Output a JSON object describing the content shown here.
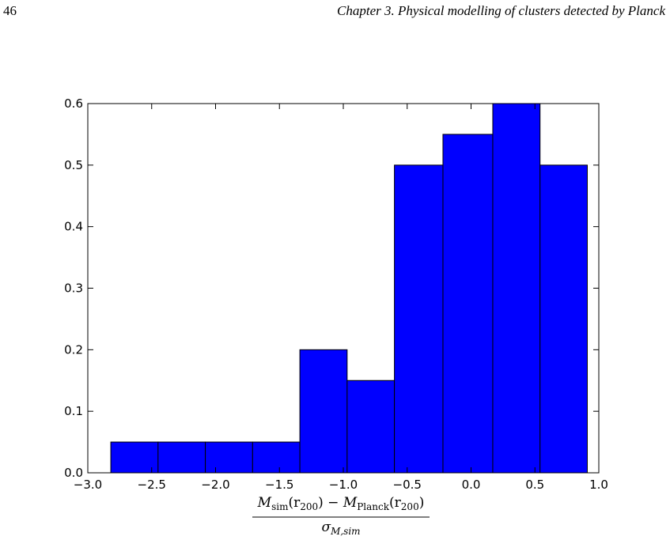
{
  "page": {
    "page_number": "46",
    "running_head": "Chapter 3.  Physical modelling of clusters detected by Planck"
  },
  "chart_data": {
    "type": "bar",
    "title": "",
    "xlabel": {
      "numerator_a": "M",
      "numerator_a_sub": "sim",
      "numerator_a_arg": "(r",
      "numerator_a_arg_sub": "200",
      "numerator_op": ") − ",
      "numerator_b": "M",
      "numerator_b_sub": "Planck",
      "numerator_b_arg": "(r",
      "numerator_b_arg_sub": "200",
      "numerator_b_close": ")",
      "denominator": "σ",
      "denominator_sub": "M,sim"
    },
    "ylabel": "",
    "xlim": [
      -3.0,
      1.0
    ],
    "ylim": [
      0.0,
      0.6
    ],
    "xticks": [
      "−3.0",
      "−2.5",
      "−2.0",
      "−1.5",
      "−1.0",
      "−0.5",
      "0.0",
      "0.5",
      "1.0"
    ],
    "xtick_values": [
      -3.0,
      -2.5,
      -2.0,
      -1.5,
      -1.0,
      -0.5,
      0.0,
      0.5,
      1.0
    ],
    "yticks": [
      "0.0",
      "0.1",
      "0.2",
      "0.3",
      "0.4",
      "0.5",
      "0.6"
    ],
    "ytick_values": [
      0.0,
      0.1,
      0.2,
      0.3,
      0.4,
      0.5,
      0.6
    ],
    "bin_edges": [
      -2.82,
      -2.45,
      -2.08,
      -1.71,
      -1.34,
      -0.97,
      -0.6,
      -0.22,
      0.17,
      0.54,
      0.91
    ],
    "values": [
      0.05,
      0.05,
      0.05,
      0.05,
      0.2,
      0.15,
      0.5,
      0.55,
      0.6,
      0.5
    ],
    "bar_color": "#0000ff",
    "edge_color": "#000000",
    "grid": false
  }
}
